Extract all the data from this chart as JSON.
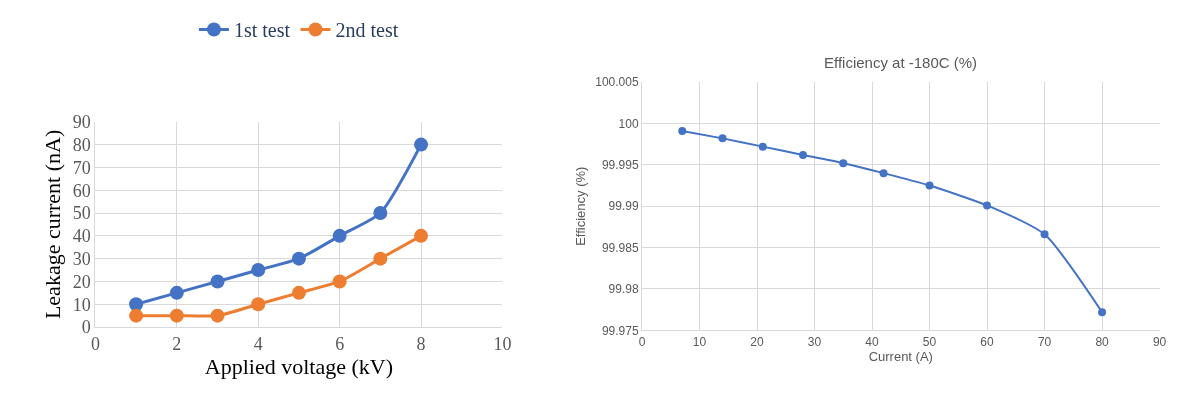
{
  "chart_data": [
    {
      "type": "line",
      "xlabel": "Applied voltage (kV)",
      "ylabel": "Leakage current (nA)",
      "x": [
        1,
        2,
        3,
        4,
        5,
        6,
        7,
        8
      ],
      "series": [
        {
          "name": "1st test",
          "color": "#4472c4",
          "values": [
            10,
            15,
            20,
            25,
            30,
            40,
            50,
            80
          ]
        },
        {
          "name": "2nd test",
          "color": "#ed7d31",
          "values": [
            5,
            5,
            5,
            10,
            15,
            20,
            30,
            40
          ]
        }
      ],
      "xlim": [
        0,
        10
      ],
      "xticks": [
        0,
        2,
        4,
        6,
        8,
        10
      ],
      "ylim": [
        0,
        90
      ],
      "yticks": [
        0,
        10,
        20,
        30,
        40,
        50,
        60,
        70,
        80,
        90
      ],
      "grid": true,
      "legend": "top",
      "marker": "circle",
      "line_style": "solid"
    },
    {
      "type": "line",
      "title": "Efficiency at -180C (%)",
      "xlabel": "Current (A)",
      "ylabel": "Efficiency (%)",
      "x": [
        7,
        14,
        21,
        28,
        35,
        42,
        50,
        60,
        70,
        80
      ],
      "series": [
        {
          "color": "#4472c4",
          "values": [
            99.9991,
            99.9982,
            99.9972,
            99.9962,
            99.9952,
            99.994,
            99.9925,
            99.9901,
            99.9866,
            99.9772
          ]
        }
      ],
      "xlim": [
        0,
        90
      ],
      "xticks": [
        0,
        10,
        20,
        30,
        40,
        50,
        60,
        70,
        80,
        90
      ],
      "ylim": [
        99.975,
        100.005
      ],
      "yticks": [
        99.975,
        99.98,
        99.985,
        99.99,
        99.995,
        100,
        100.005
      ],
      "grid": true,
      "marker": "circle",
      "line_style": "solid"
    }
  ]
}
